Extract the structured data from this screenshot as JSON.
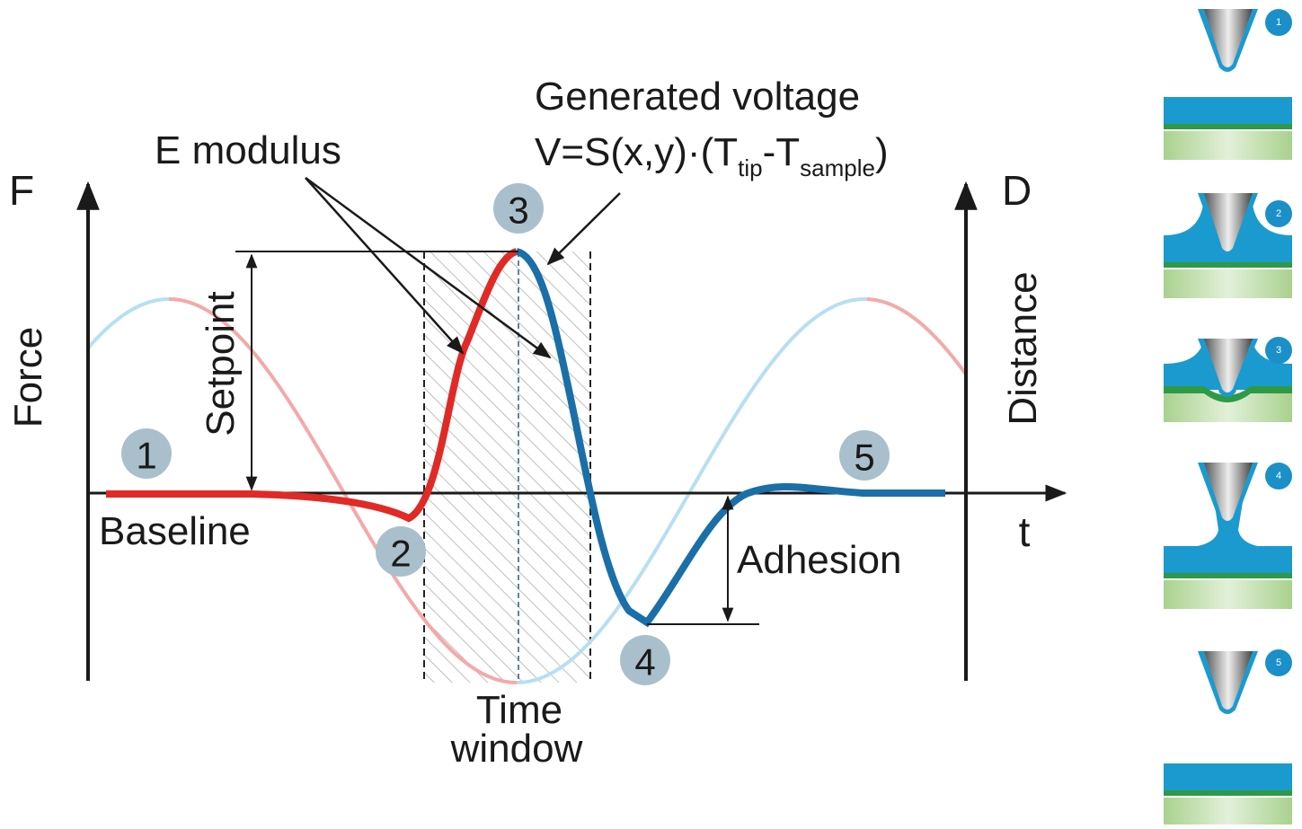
{
  "axes": {
    "force_short": "F",
    "force": "Force",
    "distance_short": "D",
    "distance": "Distance",
    "time": "t"
  },
  "annotations": {
    "e_modulus": "E modulus",
    "generated_voltage": "Generated voltage",
    "formula": [
      "V=S(x,y)·(T",
      "tip",
      "-T",
      "sample",
      ")"
    ],
    "setpoint": "Setpoint",
    "baseline": "Baseline",
    "adhesion": "Adhesion",
    "time_window": [
      "Time",
      "window"
    ]
  },
  "points": [
    "1",
    "2",
    "3",
    "4",
    "5"
  ],
  "panel_steps": [
    "1",
    "2",
    "3",
    "4",
    "5"
  ]
}
